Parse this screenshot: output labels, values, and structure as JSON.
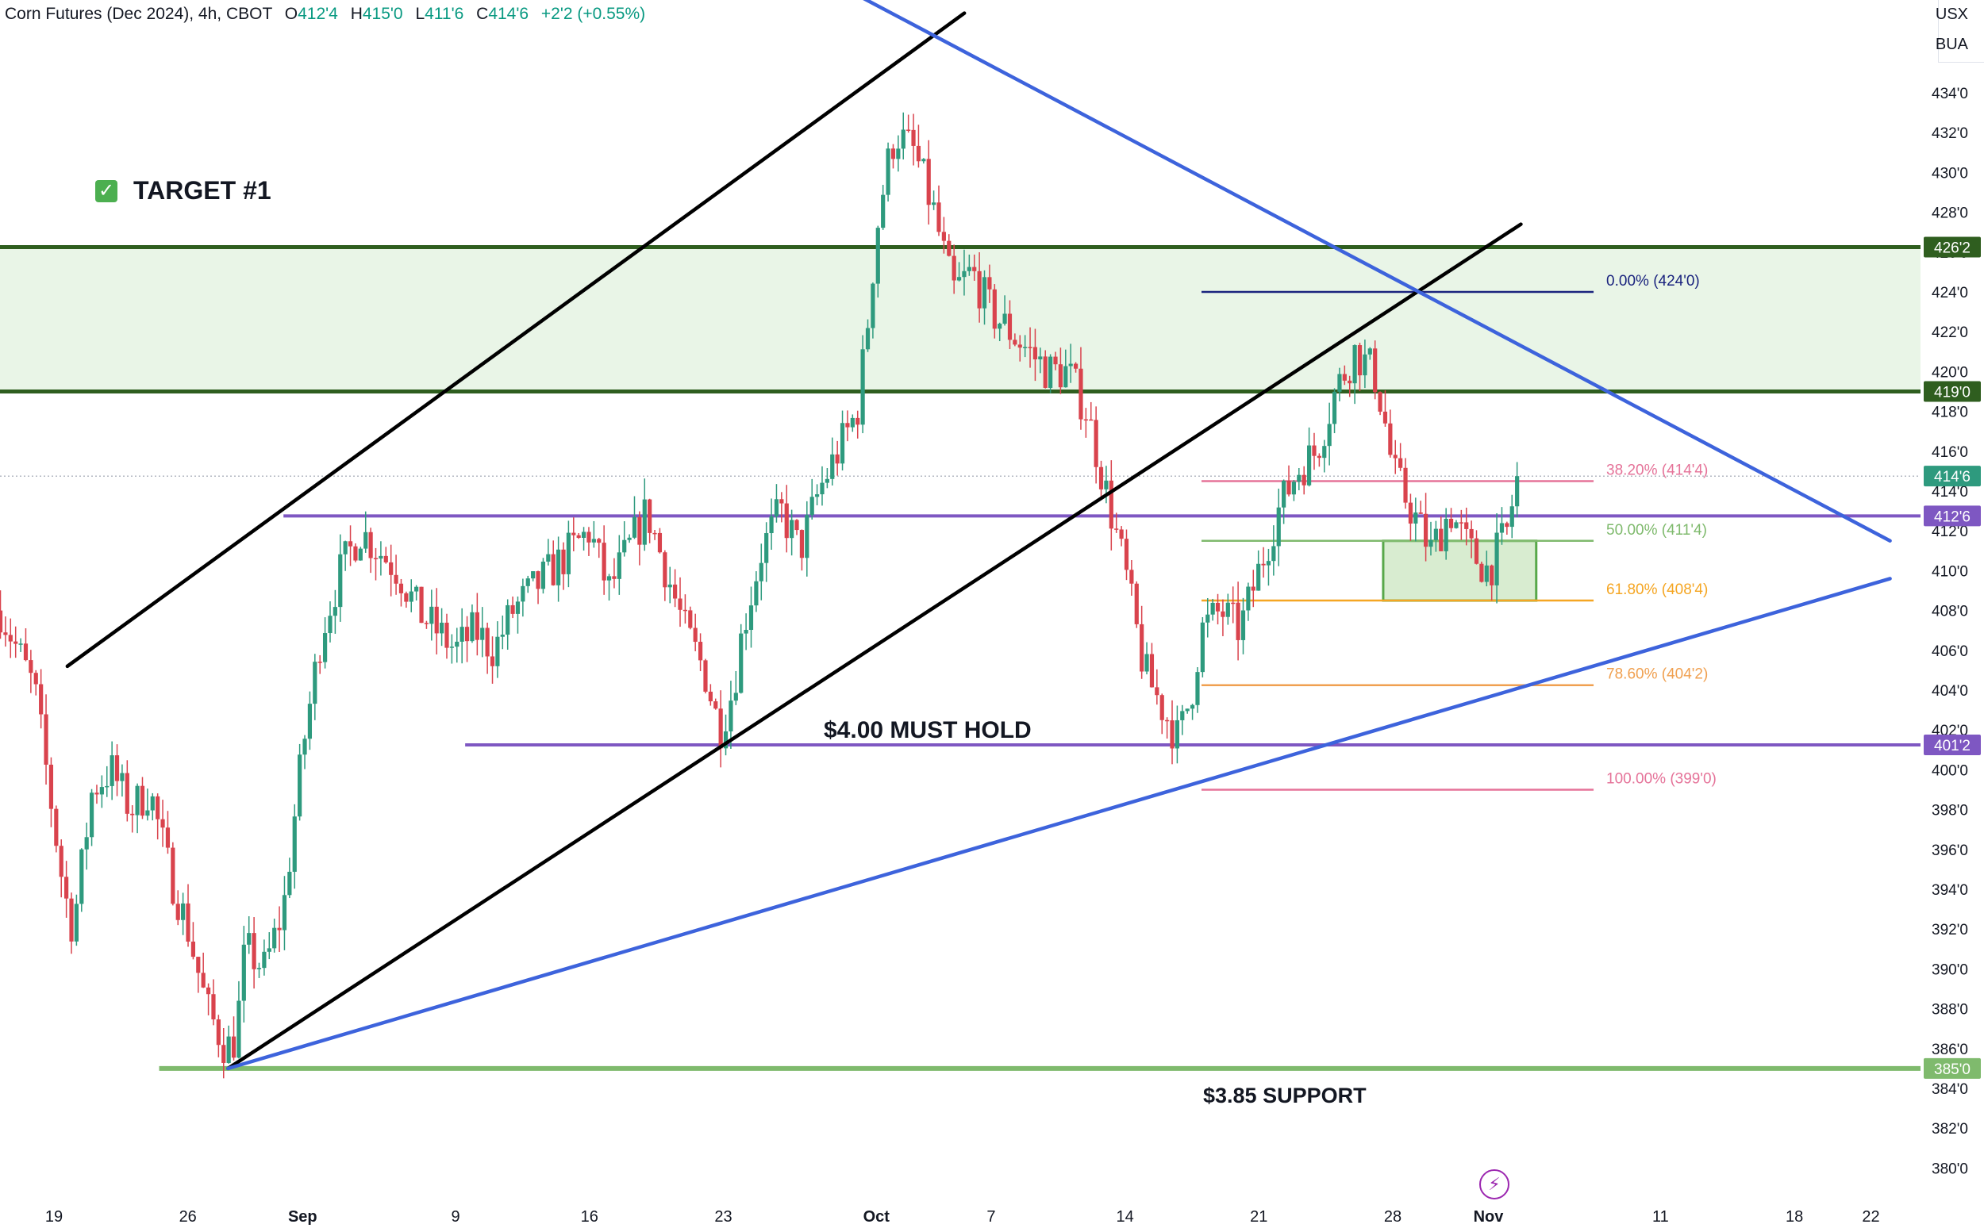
{
  "header": {
    "symbol": "Corn Futures (Dec 2024), 4h, CBOT",
    "open_label": "O",
    "open": "412'4",
    "high_label": "H",
    "high": "415'0",
    "low_label": "L",
    "low": "411'6",
    "close_label": "C",
    "close": "414'6",
    "change": "+2'2 (+0.55%)"
  },
  "corner": {
    "currency": "USX",
    "unit": "BUA"
  },
  "annotations": {
    "target": "TARGET #1",
    "must_hold": "$4.00 MUST HOLD",
    "support": "$3.85 SUPPORT"
  },
  "colors": {
    "up": "#2e9a7e",
    "down": "#d9434d",
    "resistance": "#2f5e1f",
    "support": "#7fba6d",
    "pivot": "#7e57c2",
    "trend_blue": "#3d63dc",
    "trend_black": "#000000",
    "zone_fill": "#e9f5e7",
    "box_fill": "#d8ecd0",
    "box_border": "#58a84a"
  },
  "chart_data": {
    "type": "candlestick",
    "title": "Corn Futures (Dec 2024), 4h, CBOT",
    "ylim": [
      379,
      436
    ],
    "y_ticks": [
      380,
      382,
      384,
      386,
      388,
      390,
      392,
      394,
      396,
      398,
      400,
      402,
      404,
      406,
      408,
      410,
      412,
      414,
      416,
      418,
      420,
      422,
      424,
      426,
      428,
      430,
      432,
      434
    ],
    "x_ticks": [
      {
        "label": "19",
        "day": 0
      },
      {
        "label": "26",
        "day": 7
      },
      {
        "label": "Sep",
        "day": 13
      },
      {
        "label": "9",
        "day": 21
      },
      {
        "label": "16",
        "day": 28
      },
      {
        "label": "23",
        "day": 35
      },
      {
        "label": "Oct",
        "day": 43
      },
      {
        "label": "7",
        "day": 49
      },
      {
        "label": "14",
        "day": 56
      },
      {
        "label": "21",
        "day": 63
      },
      {
        "label": "28",
        "day": 70
      },
      {
        "label": "Nov",
        "day": 75
      },
      {
        "label": "11",
        "day": 84
      },
      {
        "label": "18",
        "day": 91
      },
      {
        "label": "22",
        "day": 95
      }
    ],
    "price_path": [
      [
        -2.8,
        408
      ],
      [
        -1,
        404
      ],
      [
        0.5,
        394
      ],
      [
        1,
        392
      ],
      [
        2,
        399
      ],
      [
        3,
        400
      ],
      [
        4,
        398
      ],
      [
        5,
        399
      ],
      [
        6,
        395
      ],
      [
        7,
        392
      ],
      [
        8,
        388
      ],
      [
        9,
        386
      ],
      [
        9.5,
        386.5
      ],
      [
        10,
        391
      ],
      [
        11,
        390
      ],
      [
        12,
        393
      ],
      [
        13,
        401
      ],
      [
        14,
        407
      ],
      [
        15,
        410
      ],
      [
        16,
        412
      ],
      [
        17,
        411
      ],
      [
        18,
        410
      ],
      [
        19,
        408
      ],
      [
        20,
        407
      ],
      [
        21,
        406
      ],
      [
        22,
        407
      ],
      [
        23,
        406
      ],
      [
        24,
        408
      ],
      [
        25,
        409
      ],
      [
        26,
        410
      ],
      [
        27,
        411
      ],
      [
        28,
        412
      ],
      [
        29,
        409
      ],
      [
        30,
        411
      ],
      [
        31,
        413
      ],
      [
        32,
        410
      ],
      [
        33,
        407
      ],
      [
        34,
        405
      ],
      [
        34.8,
        402
      ],
      [
        35.5,
        404
      ],
      [
        36,
        407
      ],
      [
        37,
        411
      ],
      [
        38,
        413
      ],
      [
        39,
        411
      ],
      [
        40,
        414
      ],
      [
        41,
        416
      ],
      [
        42,
        418
      ],
      [
        42.5,
        422
      ],
      [
        43,
        427
      ],
      [
        43.5,
        430
      ],
      [
        44,
        432
      ],
      [
        45,
        431
      ],
      [
        46,
        428
      ],
      [
        47,
        424
      ],
      [
        48,
        425
      ],
      [
        49,
        423
      ],
      [
        50,
        422
      ],
      [
        51,
        421
      ],
      [
        52,
        420
      ],
      [
        53,
        420
      ],
      [
        54,
        418
      ],
      [
        55,
        414
      ],
      [
        56,
        410
      ],
      [
        57,
        405
      ],
      [
        58,
        403
      ],
      [
        58.8,
        401.5
      ],
      [
        59.5,
        404
      ],
      [
        60,
        407
      ],
      [
        61,
        408
      ],
      [
        62,
        407
      ],
      [
        63,
        410
      ],
      [
        64,
        413
      ],
      [
        65,
        415
      ],
      [
        66,
        416
      ],
      [
        67,
        419
      ],
      [
        68,
        421
      ],
      [
        69,
        420
      ],
      [
        69.5,
        418
      ],
      [
        70,
        415
      ],
      [
        71,
        413
      ],
      [
        72,
        411
      ],
      [
        73,
        413
      ],
      [
        74,
        411
      ],
      [
        75,
        410
      ],
      [
        76,
        412
      ],
      [
        76.5,
        414.75
      ]
    ],
    "candle_seed": 7,
    "candle_count": 300,
    "horizontal_levels": [
      {
        "price": 426.25,
        "label": "426'2",
        "color": "#2f5e1f",
        "width": 5
      },
      {
        "price": 419,
        "label": "419'0",
        "color": "#2f5e1f",
        "width": 5
      },
      {
        "price": 412.75,
        "label": "412'6",
        "color": "#7e57c2",
        "width": 4,
        "start_day": 12
      },
      {
        "price": 401.25,
        "label": "401'2",
        "color": "#7e57c2",
        "width": 4,
        "start_day": 21.5
      },
      {
        "price": 385,
        "label": "385'0",
        "color": "#7fba6d",
        "width": 6,
        "start_day": 5.5
      }
    ],
    "current_price": {
      "price": 414.75,
      "label": "414'6",
      "color": "#2e9a7e"
    },
    "zone": {
      "from": 419,
      "to": 426.25
    },
    "box": {
      "x1_day": 69.5,
      "x2_day": 77.5,
      "from": 408.5,
      "to": 411.5
    },
    "fibonacci": {
      "x1_day": 60,
      "x2_day": 80.5,
      "levels": [
        {
          "label": "0.00% (424'0)",
          "price": 424,
          "color": "#1a237e"
        },
        {
          "label": "38.20% (414'4)",
          "price": 414.5,
          "color": "#e57399"
        },
        {
          "label": "50.00% (411'4)",
          "price": 411.5,
          "color": "#7fba6d"
        },
        {
          "label": "61.80% (408'4)",
          "price": 408.5,
          "color": "#f5a623"
        },
        {
          "label": "78.60% (404'2)",
          "price": 404.25,
          "color": "#f0a050"
        },
        {
          "label": "100.00% (399'0)",
          "price": 399,
          "color": "#e57399"
        }
      ]
    },
    "trend_lines": [
      {
        "name": "black-upper",
        "color": "#000000",
        "from": [
          0.7,
          405.2
        ],
        "to": [
          47.6,
          438
        ]
      },
      {
        "name": "black-lower",
        "color": "#000000",
        "from": [
          9.1,
          385
        ],
        "to": [
          76.7,
          427.4
        ]
      },
      {
        "name": "blue-descending",
        "color": "#3d63dc",
        "from": [
          30,
          445
        ],
        "to": [
          96,
          411.5
        ]
      },
      {
        "name": "blue-ascending",
        "color": "#3d63dc",
        "from": [
          9.1,
          385
        ],
        "to": [
          96,
          409.6
        ]
      }
    ]
  }
}
